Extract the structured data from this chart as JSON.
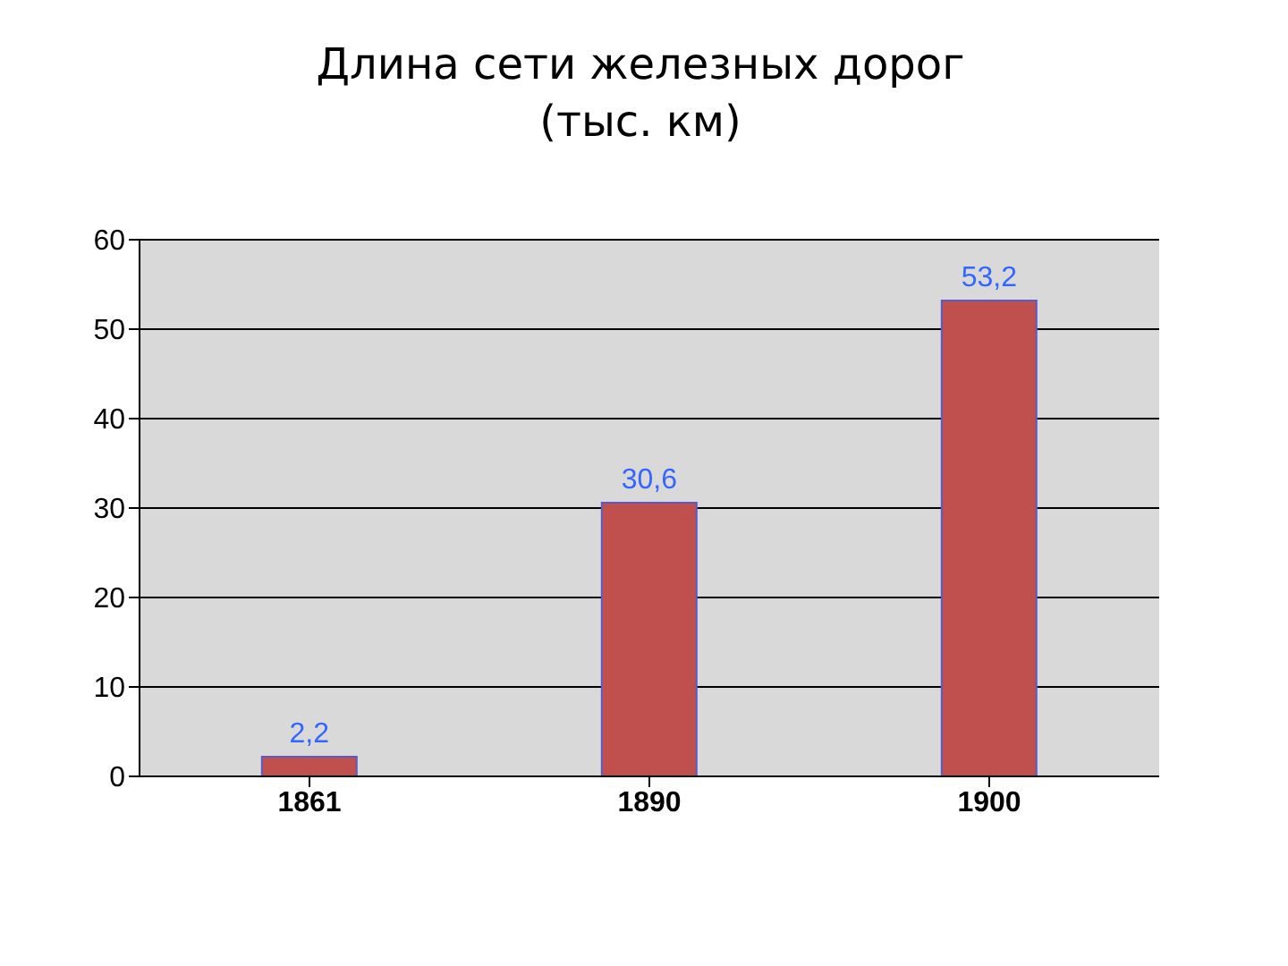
{
  "chart_data": {
    "type": "bar",
    "title": "Длина сети железных дорог",
    "subtitle": "(тыс. км)",
    "categories": [
      "1861",
      "1890",
      "1900"
    ],
    "values": [
      2.2,
      30.6,
      53.2
    ],
    "value_labels": [
      "2,2",
      "30,6",
      "53,2"
    ],
    "color": "#c0504d",
    "ylim": [
      0,
      60
    ],
    "yticks": [
      0,
      10,
      20,
      30,
      40,
      50,
      60
    ],
    "grid": "y"
  }
}
